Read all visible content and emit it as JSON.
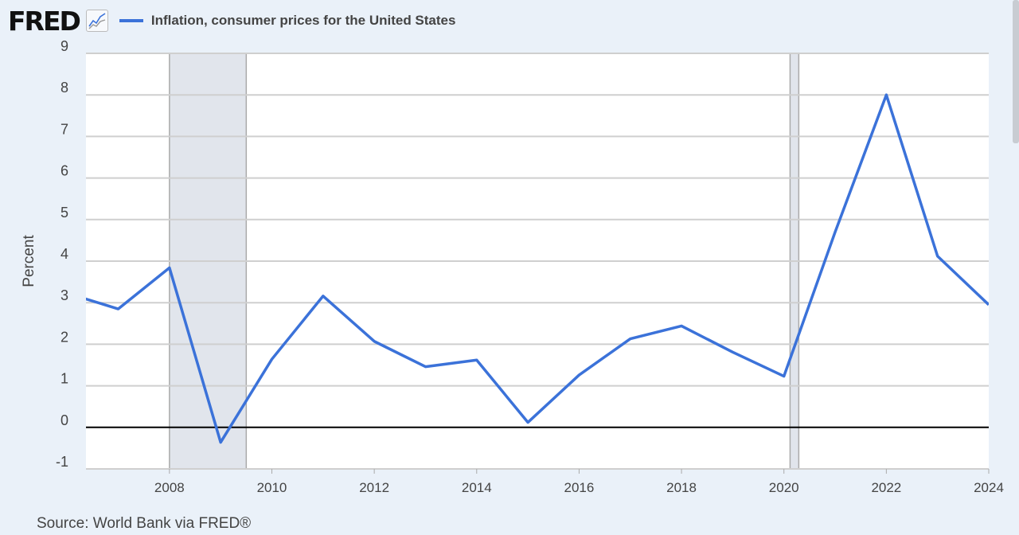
{
  "header": {
    "logo": "FRED",
    "logo_icon": "line-chart-icon",
    "legend": "Inflation, consumer prices for the United States"
  },
  "source": "Source: World Bank via FRED®",
  "chart_data": {
    "type": "line",
    "title": "",
    "ylabel": "Percent",
    "xlabel": "",
    "xlim": [
      2006.37,
      2024
    ],
    "ylim": [
      -1,
      9
    ],
    "yticks": [
      "-1",
      "0",
      "1",
      "2",
      "3",
      "4",
      "5",
      "6",
      "7",
      "8",
      "9"
    ],
    "xticks": [
      "2008",
      "2010",
      "2012",
      "2014",
      "2016",
      "2018",
      "2020",
      "2022",
      "2024"
    ],
    "grid": true,
    "color": "#3b72d9",
    "recessions": [
      [
        2008.0,
        2009.5
      ],
      [
        2020.12,
        2020.29
      ]
    ],
    "series": [
      {
        "name": "Inflation, consumer prices for the United States",
        "x": [
          2006,
          2007,
          2008,
          2009,
          2010,
          2011,
          2012,
          2013,
          2014,
          2015,
          2016,
          2017,
          2018,
          2019,
          2020,
          2021,
          2022,
          2023,
          2024
        ],
        "values": [
          3.23,
          2.85,
          3.84,
          -0.36,
          1.64,
          3.16,
          2.07,
          1.46,
          1.62,
          0.12,
          1.26,
          2.13,
          2.44,
          1.81,
          1.23,
          4.7,
          8.0,
          4.12,
          2.95
        ]
      }
    ]
  }
}
